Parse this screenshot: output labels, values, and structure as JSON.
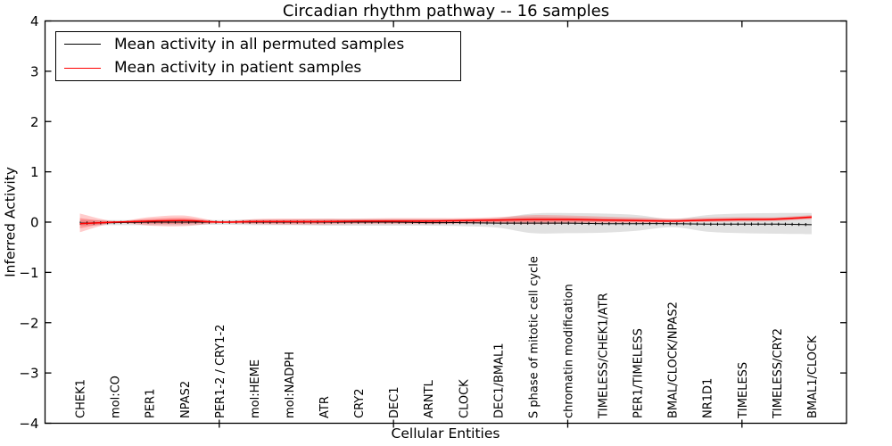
{
  "figure": {
    "title": "Circadian rhythm pathway -- 16 samples",
    "xlabel": "Cellular Entities",
    "ylabel": "Inferred Activity"
  },
  "legend": {
    "entries": [
      {
        "label": "Mean activity in all permuted samples",
        "color": "#000000"
      },
      {
        "label": "Mean activity in patient samples",
        "color": "#ff0000"
      }
    ],
    "position": "upper left"
  },
  "chart_data": {
    "type": "line",
    "title": "Circadian rhythm pathway -- 16 samples",
    "xlabel": "Cellular Entities",
    "ylabel": "Inferred Activity",
    "ylim": [
      -4,
      4
    ],
    "xlim": [
      -1,
      22
    ],
    "grid": false,
    "yticks": [
      {
        "v": 4,
        "label": "4"
      },
      {
        "v": 3,
        "label": "3"
      },
      {
        "v": 2,
        "label": "2"
      },
      {
        "v": 1,
        "label": "1"
      },
      {
        "v": 0,
        "label": "0"
      },
      {
        "v": -1,
        "label": "−1"
      },
      {
        "v": -2,
        "label": "−2"
      },
      {
        "v": -3,
        "label": "−3"
      },
      {
        "v": -4,
        "label": "−4"
      }
    ],
    "xtick_positions": [
      4,
      9,
      14,
      19
    ],
    "categories": [
      "CHEK1",
      "mol:CO",
      "PER1",
      "NPAS2",
      "PER1-2 / CRY1-2",
      "mol:HEME",
      "mol:NADPH",
      "ATR",
      "CRY2",
      "DEC1",
      "ARNTL",
      "CLOCK",
      "DEC1/BMAL1",
      "S phase of mitotic cell cycle",
      "chromatin modification",
      "TIMELESS/CHEK1/ATR",
      "PER1/TIMELESS",
      "BMAL/CLOCK/NPAS2",
      "NR1D1",
      "TIMELESS",
      "TIMELESS/CRY2",
      "BMAL1/CLOCK"
    ],
    "series": [
      {
        "name": "Mean activity in all permuted samples",
        "color": "#000000",
        "band_color": "#c9c9c9",
        "values": [
          -0.02,
          -0.01,
          0.0,
          0.0,
          0.0,
          0.0,
          0.0,
          0.0,
          0.0,
          0.0,
          -0.01,
          -0.01,
          -0.02,
          -0.02,
          -0.02,
          -0.03,
          -0.03,
          -0.03,
          -0.04,
          -0.04,
          -0.04,
          -0.05
        ],
        "band_upper": [
          0.04,
          0.04,
          0.04,
          0.05,
          0.04,
          0.05,
          0.05,
          0.06,
          0.06,
          0.06,
          0.06,
          0.06,
          0.08,
          0.17,
          0.18,
          0.17,
          0.14,
          0.06,
          0.14,
          0.17,
          0.18,
          0.18
        ],
        "band_lower": [
          -0.07,
          -0.06,
          -0.06,
          -0.06,
          -0.05,
          -0.06,
          -0.06,
          -0.07,
          -0.07,
          -0.07,
          -0.07,
          -0.08,
          -0.11,
          -0.22,
          -0.22,
          -0.21,
          -0.17,
          -0.1,
          -0.19,
          -0.22,
          -0.23,
          -0.24
        ]
      },
      {
        "name": "Mean activity in patient samples",
        "color": "#ff0000",
        "band_color": "#ff0000",
        "values": [
          -0.03,
          0.0,
          0.02,
          0.03,
          0.0,
          0.01,
          0.01,
          0.01,
          0.02,
          0.02,
          0.02,
          0.03,
          0.04,
          0.05,
          0.05,
          0.04,
          0.03,
          0.02,
          0.04,
          0.05,
          0.06,
          0.1
        ],
        "band_upper": [
          0.17,
          0.02,
          0.1,
          0.13,
          0.02,
          0.06,
          0.07,
          0.07,
          0.07,
          0.08,
          0.08,
          0.08,
          0.1,
          0.14,
          0.13,
          0.11,
          0.09,
          0.07,
          0.09,
          0.1,
          0.1,
          0.14
        ],
        "band_lower": [
          -0.2,
          -0.02,
          -0.07,
          -0.08,
          -0.02,
          -0.04,
          -0.05,
          -0.05,
          -0.04,
          -0.04,
          -0.04,
          -0.03,
          -0.03,
          -0.04,
          -0.03,
          -0.02,
          -0.02,
          -0.01,
          0.0,
          0.01,
          0.02,
          0.06
        ]
      }
    ],
    "legend_position": "upper left"
  }
}
